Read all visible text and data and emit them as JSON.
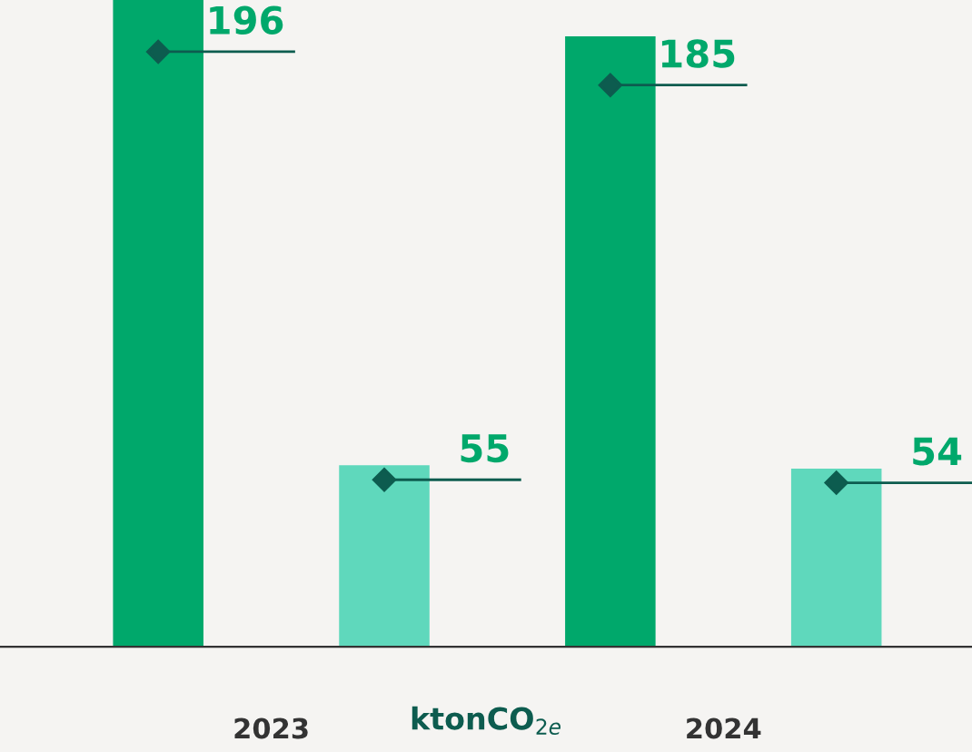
{
  "chart_data": {
    "type": "bar",
    "xlabel": "ktonCO$_{2e}$",
    "categories": [
      "2023",
      "2024"
    ],
    "series": [
      {
        "color": "#00a86b",
        "values": [
          196,
          185
        ]
      },
      {
        "color": "#5fd8bc",
        "values": [
          55,
          54
        ]
      }
    ],
    "data_labels": true,
    "grid": false,
    "legend": false
  }
}
